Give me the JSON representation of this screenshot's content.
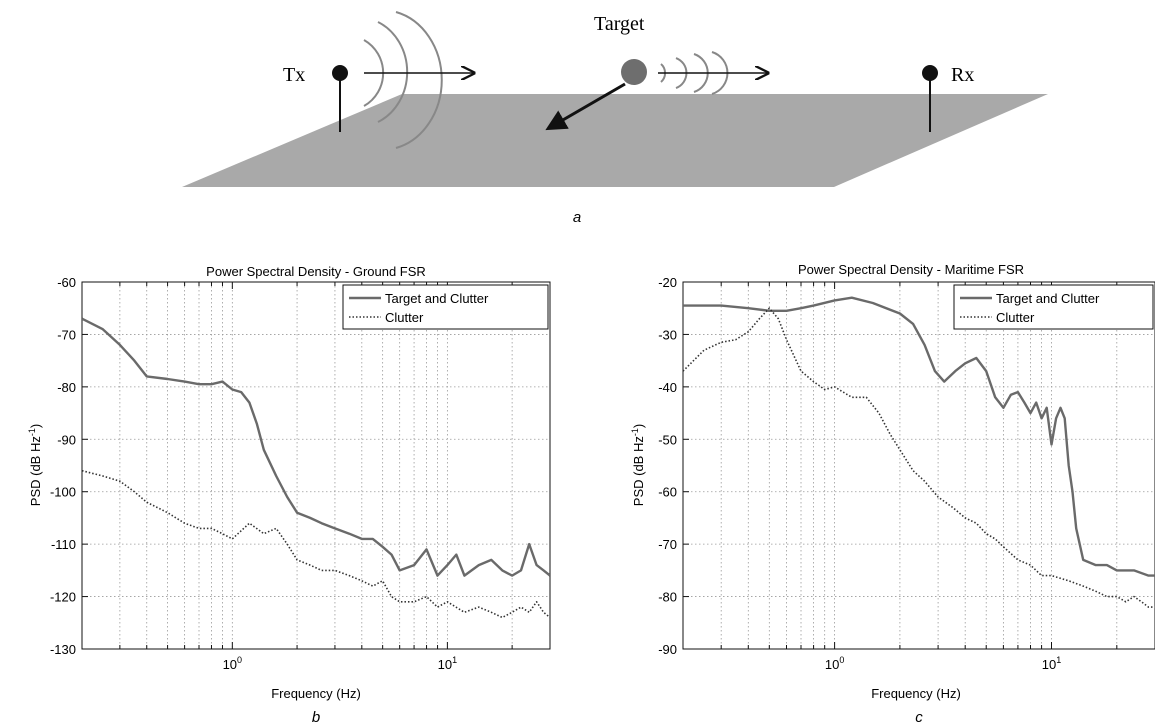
{
  "diagram": {
    "panel_label": "a",
    "tx_label": "Tx",
    "rx_label": "Rx",
    "target_label": "Target"
  },
  "chart_data": [
    {
      "panel_label": "b",
      "type": "line",
      "title": "Power Spectral Density - Ground FSR",
      "xlabel": "Frequency (Hz)",
      "ylabel": "PSD (dB Hz",
      "ylabel_sup": "-1",
      "ylabel_end": ")",
      "xscale": "log",
      "xlim": [
        0.2,
        30
      ],
      "ylim": [
        -130,
        -60
      ],
      "yticks": [
        -60,
        -70,
        -80,
        -90,
        -100,
        -110,
        -120,
        -130
      ],
      "xtick_labels": [
        {
          "value": 1,
          "base": "10",
          "exp": "0"
        },
        {
          "value": 10,
          "base": "10",
          "exp": "1"
        }
      ],
      "grid": true,
      "legend_position": "top-right",
      "series": [
        {
          "name": "Target and Clutter",
          "style": "solid",
          "color": "#6a6a6a",
          "x": [
            0.2,
            0.25,
            0.3,
            0.35,
            0.4,
            0.5,
            0.6,
            0.7,
            0.8,
            0.9,
            1.0,
            1.1,
            1.2,
            1.3,
            1.4,
            1.6,
            1.8,
            2.0,
            2.3,
            2.6,
            3.0,
            3.5,
            4.0,
            4.5,
            5.0,
            5.5,
            6.0,
            7.0,
            8.0,
            9.0,
            10,
            11,
            12,
            14,
            16,
            18,
            20,
            22,
            24,
            26,
            28,
            30
          ],
          "y": [
            -67,
            -69,
            -72,
            -75,
            -78,
            -78.5,
            -79,
            -79.5,
            -79.5,
            -79,
            -80.5,
            -81,
            -83,
            -87,
            -92,
            -97,
            -101,
            -104,
            -105,
            -106,
            -107,
            -108,
            -109,
            -109,
            -110.5,
            -112,
            -115,
            -114,
            -111,
            -116,
            -114,
            -112,
            -116,
            -114,
            -113,
            -115,
            -116,
            -115,
            -110,
            -114,
            -115,
            -116
          ]
        },
        {
          "name": "Clutter",
          "style": "dotted",
          "color": "#333333",
          "x": [
            0.2,
            0.25,
            0.3,
            0.35,
            0.4,
            0.5,
            0.6,
            0.7,
            0.8,
            0.9,
            1.0,
            1.2,
            1.4,
            1.6,
            1.8,
            2.0,
            2.3,
            2.6,
            3.0,
            3.5,
            4.0,
            4.5,
            5.0,
            5.5,
            6.0,
            7.0,
            8.0,
            9.0,
            10,
            12,
            14,
            16,
            18,
            20,
            22,
            24,
            26,
            28,
            30
          ],
          "y": [
            -96,
            -97,
            -98,
            -100,
            -102,
            -104,
            -106,
            -107,
            -107,
            -108,
            -109,
            -106,
            -108,
            -107,
            -110,
            -113,
            -114,
            -115,
            -115,
            -116,
            -117,
            -118,
            -117,
            -120,
            -121,
            -121,
            -120,
            -122,
            -121,
            -123,
            -122,
            -123,
            -124,
            -123,
            -122,
            -123,
            -121,
            -123,
            -124
          ]
        }
      ]
    },
    {
      "panel_label": "c",
      "type": "line",
      "title": "Power Spectral Density - Maritime FSR",
      "xlabel": "Frequency (Hz)",
      "ylabel": "PSD (dB Hz",
      "ylabel_sup": "-1",
      "ylabel_end": ")",
      "xscale": "log",
      "xlim": [
        0.2,
        30
      ],
      "ylim": [
        -90,
        -20
      ],
      "yticks": [
        -20,
        -30,
        -40,
        -50,
        -60,
        -70,
        -80,
        -90
      ],
      "xtick_labels": [
        {
          "value": 1,
          "base": "10",
          "exp": "0"
        },
        {
          "value": 10,
          "base": "10",
          "exp": "1"
        }
      ],
      "grid": true,
      "legend_position": "top-right",
      "series": [
        {
          "name": "Target and Clutter",
          "style": "solid",
          "color": "#6a6a6a",
          "x": [
            0.2,
            0.3,
            0.4,
            0.5,
            0.6,
            0.7,
            0.8,
            1.0,
            1.2,
            1.5,
            2.0,
            2.3,
            2.6,
            2.9,
            3.2,
            3.6,
            4.0,
            4.5,
            5.0,
            5.5,
            6.0,
            6.5,
            7.0,
            7.5,
            8.0,
            8.5,
            9.0,
            9.5,
            10,
            10.5,
            11,
            11.5,
            12,
            12.5,
            13,
            14,
            16,
            18,
            20,
            24,
            28,
            30
          ],
          "y": [
            -24.5,
            -24.5,
            -25,
            -25.5,
            -25.5,
            -25,
            -24.5,
            -23.5,
            -23,
            -24,
            -26,
            -28,
            -32,
            -37,
            -39,
            -37,
            -35.5,
            -34.5,
            -37,
            -42,
            -44,
            -41.5,
            -41,
            -43,
            -45,
            -43,
            -46,
            -44,
            -51,
            -46,
            -44,
            -46,
            -55,
            -60,
            -67,
            -73,
            -74,
            -74,
            -75,
            -75,
            -76,
            -76
          ]
        },
        {
          "name": "Clutter",
          "style": "dotted",
          "color": "#333333",
          "x": [
            0.2,
            0.25,
            0.3,
            0.35,
            0.4,
            0.45,
            0.5,
            0.55,
            0.6,
            0.7,
            0.8,
            0.9,
            1.0,
            1.2,
            1.4,
            1.6,
            1.8,
            2.0,
            2.3,
            2.6,
            3.0,
            3.5,
            4.0,
            4.5,
            5.0,
            5.5,
            6.0,
            7.0,
            8.0,
            9.0,
            10,
            12,
            14,
            16,
            18,
            20,
            22,
            24,
            26,
            28,
            30
          ],
          "y": [
            -37,
            -33,
            -31.5,
            -31,
            -29.5,
            -27,
            -25,
            -27,
            -31,
            -37,
            -39,
            -40.5,
            -40,
            -42,
            -42,
            -45,
            -49,
            -52,
            -56,
            -58,
            -61,
            -63,
            -65,
            -66,
            -68,
            -69,
            -70.5,
            -73,
            -74,
            -76,
            -76,
            -77,
            -78,
            -79,
            -80,
            -80,
            -81,
            -80,
            -81,
            -82,
            -82
          ]
        }
      ]
    }
  ]
}
